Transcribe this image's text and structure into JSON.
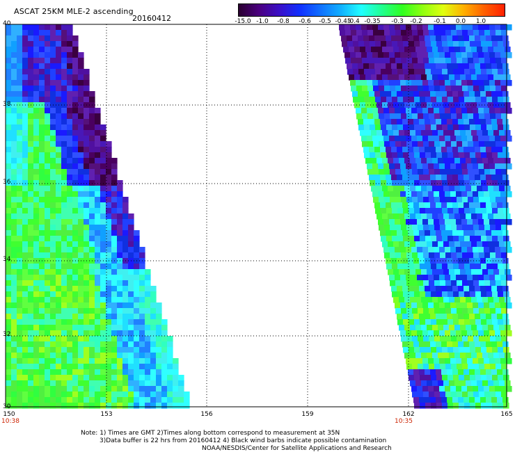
{
  "header": {
    "title": "ASCAT 25KM MLE-2 ascending",
    "date": "20160412"
  },
  "colorbar": {
    "labels": [
      "-15.0",
      "-1.0",
      "-0.8",
      "-0.6",
      "-0.5",
      "-0.45",
      "-0.4",
      "-0.35",
      "-0.3",
      "-0.2",
      "-0.1",
      "0.0",
      "1.0"
    ],
    "colors": [
      "#2a0030",
      "#4b0080",
      "#3a10c8",
      "#1030ff",
      "#1070ff",
      "#10b0ff",
      "#20ffff",
      "#20ff90",
      "#30ff20",
      "#90ff10",
      "#e0ff10",
      "#ffb000",
      "#ff6000",
      "#ff2000"
    ]
  },
  "axes": {
    "x_ticks": [
      "150",
      "153",
      "156",
      "159",
      "162",
      "165"
    ],
    "y_ticks": [
      "40",
      "38",
      "36",
      "34",
      "32",
      "30"
    ],
    "times": [
      "10:38",
      "10:35"
    ]
  },
  "notes": {
    "line1": "Note: 1) Times are GMT 2)Times along bottom correspond to measurement at 35N",
    "line2": "3)Data buffer is 22 hrs from 20160412 4) Black wind barbs indicate possible contamination",
    "line3": "NOAA/NESDIS/Center for Satellite Applications and Research"
  },
  "map": {
    "lon_range": [
      150,
      165
    ],
    "lat_range": [
      30,
      40
    ],
    "grid": true
  }
}
